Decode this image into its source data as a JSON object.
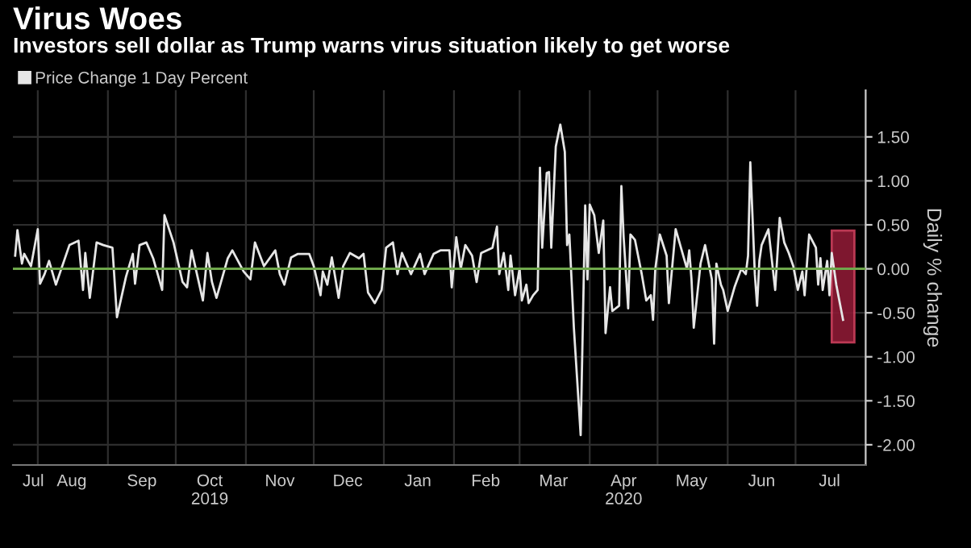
{
  "chart_data": {
    "type": "line",
    "title": "Virus Woes",
    "subtitle": "Investors sell dollar as Trump warns virus situation likely to get worse",
    "ylabel": "Daily % change",
    "x": [
      "2019-07-22",
      "2019-07-23",
      "2019-07-25",
      "2019-07-26",
      "2019-07-29",
      "2019-08-01",
      "2019-08-02",
      "2019-08-04",
      "2019-08-06",
      "2019-08-09",
      "2019-08-15",
      "2019-08-19",
      "2019-08-21",
      "2019-08-22",
      "2019-08-24",
      "2019-08-27",
      "2019-08-30",
      "2019-09-03",
      "2019-09-05",
      "2019-09-09",
      "2019-09-12",
      "2019-09-13",
      "2019-09-15",
      "2019-09-18",
      "2019-09-21",
      "2019-09-23",
      "2019-09-25",
      "2019-09-26",
      "2019-09-30",
      "2019-10-04",
      "2019-10-06",
      "2019-10-08",
      "2019-10-13",
      "2019-10-15",
      "2019-10-17",
      "2019-10-19",
      "2019-10-24",
      "2019-10-26",
      "2019-10-31",
      "2019-11-03",
      "2019-11-05",
      "2019-11-09",
      "2019-11-14",
      "2019-11-16",
      "2019-11-18",
      "2019-11-21",
      "2019-11-24",
      "2019-11-29",
      "2019-12-01",
      "2019-12-04",
      "2019-12-05",
      "2019-12-07",
      "2019-12-09",
      "2019-12-12",
      "2019-12-14",
      "2019-12-17",
      "2019-12-21",
      "2019-12-23",
      "2019-12-25",
      "2019-12-28",
      "2019-12-31",
      "2020-01-02",
      "2020-01-05",
      "2020-01-07",
      "2020-01-09",
      "2020-01-13",
      "2020-01-17",
      "2020-01-19",
      "2020-01-23",
      "2020-01-26",
      "2020-01-30",
      "2020-01-31",
      "2020-02-02",
      "2020-02-04",
      "2020-02-06",
      "2020-02-09",
      "2020-02-11",
      "2020-02-13",
      "2020-02-18",
      "2020-02-20",
      "2020-02-21",
      "2020-02-23",
      "2020-02-25",
      "2020-02-26",
      "2020-02-28",
      "2020-03-01",
      "2020-03-02",
      "2020-03-04",
      "2020-03-05",
      "2020-03-07",
      "2020-03-09",
      "2020-03-10",
      "2020-03-11",
      "2020-03-13",
      "2020-03-14",
      "2020-03-15",
      "2020-03-17",
      "2020-03-19",
      "2020-03-21",
      "2020-03-22",
      "2020-03-23",
      "2020-03-25",
      "2020-03-28",
      "2020-03-30",
      "2020-03-31",
      "2020-04-01",
      "2020-04-03",
      "2020-04-05",
      "2020-04-07",
      "2020-04-08",
      "2020-04-10",
      "2020-04-11",
      "2020-04-14",
      "2020-04-15",
      "2020-04-16",
      "2020-04-18",
      "2020-04-19",
      "2020-04-21",
      "2020-04-24",
      "2020-04-26",
      "2020-04-28",
      "2020-04-29",
      "2020-04-30",
      "2020-05-02",
      "2020-05-05",
      "2020-05-06",
      "2020-05-09",
      "2020-05-12",
      "2020-05-14",
      "2020-05-15",
      "2020-05-16",
      "2020-05-17",
      "2020-05-20",
      "2020-05-22",
      "2020-05-25",
      "2020-05-26",
      "2020-05-27",
      "2020-05-29",
      "2020-05-30",
      "2020-06-01",
      "2020-06-04",
      "2020-06-07",
      "2020-06-09",
      "2020-06-10",
      "2020-06-11",
      "2020-06-13",
      "2020-06-14",
      "2020-06-15",
      "2020-06-16",
      "2020-06-19",
      "2020-06-22",
      "2020-06-24",
      "2020-06-26",
      "2020-06-28",
      "2020-06-30",
      "2020-07-02",
      "2020-07-04",
      "2020-07-05",
      "2020-07-07",
      "2020-07-10",
      "2020-07-11",
      "2020-07-12",
      "2020-07-13",
      "2020-07-15",
      "2020-07-16",
      "2020-07-17",
      "2020-07-19",
      "2020-07-22"
    ],
    "series": [
      {
        "name": "Price Change 1 Day Percent",
        "color": "#e6e6e6",
        "values": [
          0.15,
          0.44,
          0.06,
          0.17,
          0.03,
          0.45,
          -0.17,
          -0.06,
          0.09,
          -0.18,
          0.27,
          0.32,
          -0.24,
          0.18,
          -0.33,
          0.3,
          0.27,
          0.24,
          -0.55,
          -0.09,
          0.17,
          -0.17,
          0.27,
          0.3,
          0.12,
          -0.06,
          -0.24,
          0.61,
          0.3,
          -0.15,
          -0.21,
          0.21,
          -0.36,
          0.18,
          -0.15,
          -0.33,
          0.12,
          0.21,
          -0.03,
          -0.12,
          0.3,
          0.03,
          0.21,
          -0.06,
          -0.18,
          0.13,
          0.17,
          0.17,
          0.03,
          -0.3,
          -0.03,
          -0.18,
          0.13,
          -0.33,
          0.03,
          0.18,
          0.12,
          0.17,
          -0.27,
          -0.39,
          -0.24,
          0.24,
          0.3,
          -0.06,
          0.18,
          -0.06,
          0.17,
          -0.06,
          0.17,
          0.21,
          0.21,
          -0.21,
          0.36,
          0.0,
          0.27,
          0.15,
          -0.15,
          0.18,
          0.24,
          0.48,
          -0.06,
          0.18,
          -0.24,
          0.15,
          -0.3,
          0.0,
          -0.36,
          -0.18,
          -0.39,
          -0.3,
          -0.24,
          1.15,
          0.24,
          1.09,
          1.1,
          0.24,
          1.39,
          1.64,
          1.33,
          0.27,
          0.39,
          -0.67,
          -1.89,
          0.72,
          -0.12,
          0.73,
          0.61,
          0.18,
          0.55,
          -0.73,
          -0.21,
          -0.48,
          -0.42,
          0.94,
          0.36,
          -0.45,
          0.39,
          0.33,
          -0.06,
          -0.36,
          -0.3,
          -0.58,
          0.0,
          0.39,
          0.15,
          -0.39,
          0.45,
          0.18,
          0.0,
          0.21,
          -0.12,
          -0.67,
          0.06,
          0.27,
          -0.12,
          -0.85,
          0.06,
          -0.18,
          -0.24,
          -0.48,
          -0.21,
          0.0,
          -0.06,
          0.15,
          1.21,
          -0.06,
          -0.42,
          0.09,
          0.27,
          0.45,
          -0.24,
          0.58,
          0.3,
          0.18,
          0.03,
          -0.24,
          -0.03,
          -0.3,
          0.39,
          0.24,
          -0.18,
          0.12,
          -0.24,
          0.09,
          -0.3,
          0.18,
          -0.18,
          -0.58
        ]
      }
    ],
    "xlim": [
      "2019-07-21",
      "2020-08-01"
    ],
    "xticks": [
      {
        "value": "2019-07-30",
        "label": "Jul"
      },
      {
        "value": "2019-08-01",
        "label": null
      },
      {
        "value": "2019-08-16",
        "label": "Aug"
      },
      {
        "value": "2019-09-01",
        "label": null
      },
      {
        "value": "2019-09-16",
        "label": "Sep"
      },
      {
        "value": "2019-10-01",
        "label": null
      },
      {
        "value": "2019-10-16",
        "label": "Oct\n2019"
      },
      {
        "value": "2019-11-01",
        "label": null
      },
      {
        "value": "2019-11-16",
        "label": "Nov"
      },
      {
        "value": "2019-12-01",
        "label": null
      },
      {
        "value": "2019-12-16",
        "label": "Dec"
      },
      {
        "value": "2020-01-01",
        "label": null
      },
      {
        "value": "2020-01-16",
        "label": "Jan"
      },
      {
        "value": "2020-02-01",
        "label": null
      },
      {
        "value": "2020-02-15",
        "label": "Feb"
      },
      {
        "value": "2020-03-01",
        "label": null
      },
      {
        "value": "2020-03-16",
        "label": "Mar"
      },
      {
        "value": "2020-04-01",
        "label": null
      },
      {
        "value": "2020-04-16",
        "label": "Apr\n2020"
      },
      {
        "value": "2020-05-01",
        "label": null
      },
      {
        "value": "2020-05-16",
        "label": "May"
      },
      {
        "value": "2020-06-01",
        "label": null
      },
      {
        "value": "2020-06-16",
        "label": "Jun"
      },
      {
        "value": "2020-07-01",
        "label": null
      },
      {
        "value": "2020-07-16",
        "label": "Jul"
      }
    ],
    "ylim": [
      -2.23,
      2.03
    ],
    "yticks": [
      {
        "value": -2,
        "label": "-2.00"
      },
      {
        "value": -1.5,
        "label": "-1.50"
      },
      {
        "value": -1,
        "label": "-1.00"
      },
      {
        "value": -0.5,
        "label": "-0.50"
      },
      {
        "value": 0,
        "label": "0.00"
      },
      {
        "value": 0.5,
        "label": "0.50"
      },
      {
        "value": 1,
        "label": "1.00"
      },
      {
        "value": 1.5,
        "label": "1.50"
      }
    ],
    "ref_lines": [
      {
        "axis": "y",
        "value": 0,
        "color": "#6fa84c"
      }
    ],
    "bands": [
      {
        "axis": "x",
        "from": "2020-07-17",
        "to": "2020-07-27",
        "color": "#8c1a35"
      }
    ],
    "grid": true,
    "legend": "top left"
  }
}
